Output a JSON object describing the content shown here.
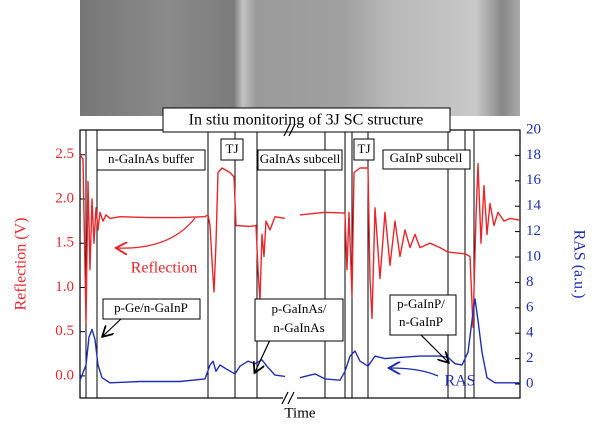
{
  "chart_data": {
    "type": "line",
    "title": "In stiu monitoring of 3J SC structure",
    "xlabel": "Time",
    "ylabel": "Reflection (V)",
    "y2label": "RAS (a.u.)",
    "xlim": [
      0,
      440
    ],
    "ylim": [
      -0.25,
      2.78
    ],
    "yticks": [
      {
        "value": 0,
        "label": "0.0"
      },
      0.5,
      {
        "value": 1,
        "label": "1.0"
      },
      1.5,
      {
        "value": 2,
        "label": "2.0"
      },
      2.5
    ],
    "y2lim": [
      -1.1,
      20
    ],
    "y2ticks": [
      0,
      2,
      4,
      6,
      8,
      10,
      12,
      14,
      16,
      18,
      20
    ],
    "vlines": [
      6,
      17,
      128,
      155,
      177,
      245,
      265,
      272,
      288,
      368,
      385,
      394
    ],
    "series": [
      {
        "name": "Reflection",
        "color": "#e8262a",
        "x": [
          0,
          3,
          6,
          8,
          10,
          12,
          14,
          16,
          18,
          20,
          23,
          26,
          30,
          40,
          70,
          100,
          125,
          128,
          130,
          132,
          134,
          136,
          138,
          142,
          150,
          154,
          156,
          170,
          176,
          178,
          180,
          182,
          184,
          186,
          190,
          195,
          205,
          210,
          220,
          245,
          265,
          267,
          269,
          272,
          274,
          280,
          288,
          290,
          292,
          295,
          300,
          305,
          310,
          315,
          320,
          325,
          330,
          335,
          340,
          350,
          360,
          368,
          385,
          390,
          393,
          396,
          398,
          401,
          404,
          407,
          410,
          414,
          418,
          424,
          430,
          440
        ],
        "values": [
          2.5,
          2.45,
          0.6,
          2.2,
          1.2,
          2.0,
          1.5,
          1.9,
          1.65,
          1.85,
          1.75,
          1.82,
          1.78,
          1.8,
          1.79,
          1.79,
          1.8,
          1.82,
          1.7,
          1.3,
          0.95,
          1.5,
          2.3,
          2.35,
          2.3,
          2.25,
          1.7,
          1.69,
          1.7,
          1.2,
          0.85,
          1.6,
          1.35,
          1.75,
          1.65,
          1.8,
          1.78,
          null,
          1.82,
          1.85,
          1.84,
          1.2,
          1.85,
          0.9,
          2.3,
          2.35,
          2.35,
          1.1,
          0.65,
          1.9,
          1.1,
          1.85,
          1.25,
          1.75,
          1.35,
          1.65,
          1.45,
          1.6,
          1.45,
          1.5,
          1.45,
          1.4,
          1.38,
          1.35,
          0.55,
          1.8,
          2.4,
          1.5,
          2.15,
          1.6,
          1.95,
          1.7,
          1.85,
          1.75,
          1.78,
          1.76
        ]
      },
      {
        "name": "RAS",
        "color": "#1f2fb5",
        "axis": "y2",
        "x": [
          0,
          6,
          9,
          12,
          15,
          18,
          22,
          30,
          60,
          100,
          125,
          130,
          133,
          136,
          140,
          146,
          155,
          160,
          168,
          175,
          182,
          188,
          195,
          205,
          210,
          220,
          235,
          245,
          260,
          265,
          270,
          275,
          280,
          288,
          295,
          305,
          320,
          340,
          360,
          368,
          375,
          382,
          388,
          392,
          395,
          398,
          402,
          407,
          415,
          440
        ],
        "values": [
          0.3,
          1.5,
          3.7,
          4.3,
          3.5,
          1.5,
          0.5,
          0.1,
          0.2,
          0.2,
          0.4,
          1.5,
          1.8,
          1.0,
          1.5,
          1.2,
          0.8,
          1.4,
          1.8,
          1.6,
          1.9,
          1.3,
          0.7,
          0.6,
          null,
          0.5,
          0.8,
          0.4,
          0.3,
          1.0,
          2.2,
          2.6,
          1.8,
          1.4,
          2.2,
          2.0,
          2.1,
          2.2,
          2.2,
          2.1,
          1.6,
          1.5,
          2.5,
          5,
          6.7,
          5,
          2.5,
          0.5,
          0.1,
          0.1
        ]
      }
    ],
    "annotations": [
      "n-GaInAs buffer",
      "TJ",
      "GaInAs subcell",
      "TJ",
      "GaInP subcell",
      "Reflection",
      "p-Ge/n-GaInP",
      "p-GaInAs/",
      "n-GaInAs",
      "p-GaInP/",
      "n-GaInP",
      "RAS"
    ]
  }
}
